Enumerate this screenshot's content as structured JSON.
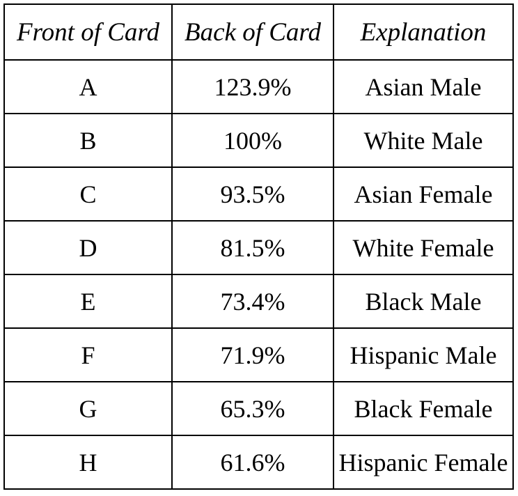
{
  "table": {
    "headers": [
      "Front of Card",
      "Back of Card",
      "Explanation"
    ],
    "rows": [
      [
        "A",
        "123.9%",
        "Asian Male"
      ],
      [
        "B",
        "100%",
        "White Male"
      ],
      [
        "C",
        "93.5%",
        "Asian Female"
      ],
      [
        "D",
        "81.5%",
        "White Female"
      ],
      [
        "E",
        "73.4%",
        "Black Male"
      ],
      [
        "F",
        "71.9%",
        "Hispanic Male"
      ],
      [
        "G",
        "65.3%",
        "Black Female"
      ],
      [
        "H",
        "61.6%",
        "Hispanic Female"
      ]
    ]
  }
}
